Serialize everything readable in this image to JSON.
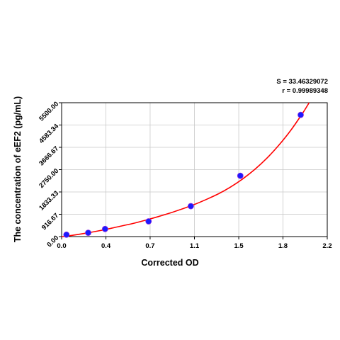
{
  "chart_data": {
    "type": "scatter",
    "title": "",
    "xlabel": "Corrected OD",
    "ylabel": "The concentration of eEF2 (pg/mL)",
    "xlim": [
      0.0,
      2.2
    ],
    "ylim": [
      0.0,
      5500.0
    ],
    "x_ticks": [
      "0.0",
      "0.4",
      "0.7",
      "1.1",
      "1.5",
      "1.8",
      "2.2"
    ],
    "x_tick_values": [
      0.0,
      0.367,
      0.733,
      1.1,
      1.467,
      1.833,
      2.2
    ],
    "y_ticks": [
      "0.00",
      "916.67",
      "1833.33",
      "2750.00",
      "3666.67",
      "4583.34",
      "5500.00"
    ],
    "y_tick_values": [
      0.0,
      916.67,
      1833.33,
      2750.0,
      3666.67,
      4583.34,
      5500.0
    ],
    "grid": true,
    "points": {
      "x": [
        0.04,
        0.22,
        0.36,
        0.72,
        1.07,
        1.48,
        1.98
      ],
      "y": [
        78,
        156,
        313,
        625,
        1250,
        2500,
        5000
      ]
    },
    "fit_curve": {
      "x": [
        0.0,
        0.1,
        0.2,
        0.3,
        0.4,
        0.5,
        0.6,
        0.7,
        0.8,
        0.9,
        1.0,
        1.1,
        1.2,
        1.3,
        1.4,
        1.5,
        1.6,
        1.7,
        1.8,
        1.9,
        2.0,
        2.05
      ],
      "y": [
        -10,
        60,
        140,
        230,
        330,
        440,
        550,
        680,
        820,
        970,
        1140,
        1320,
        1530,
        1760,
        2040,
        2370,
        2760,
        3220,
        3760,
        4380,
        5100,
        5500
      ]
    },
    "colors": {
      "points": "#1a1aff",
      "curve": "#ff0000",
      "grid": "#c8c8c8"
    },
    "annotations": {
      "s_value": "S = 33.46329072",
      "r_value": "r = 0.99989348"
    }
  }
}
